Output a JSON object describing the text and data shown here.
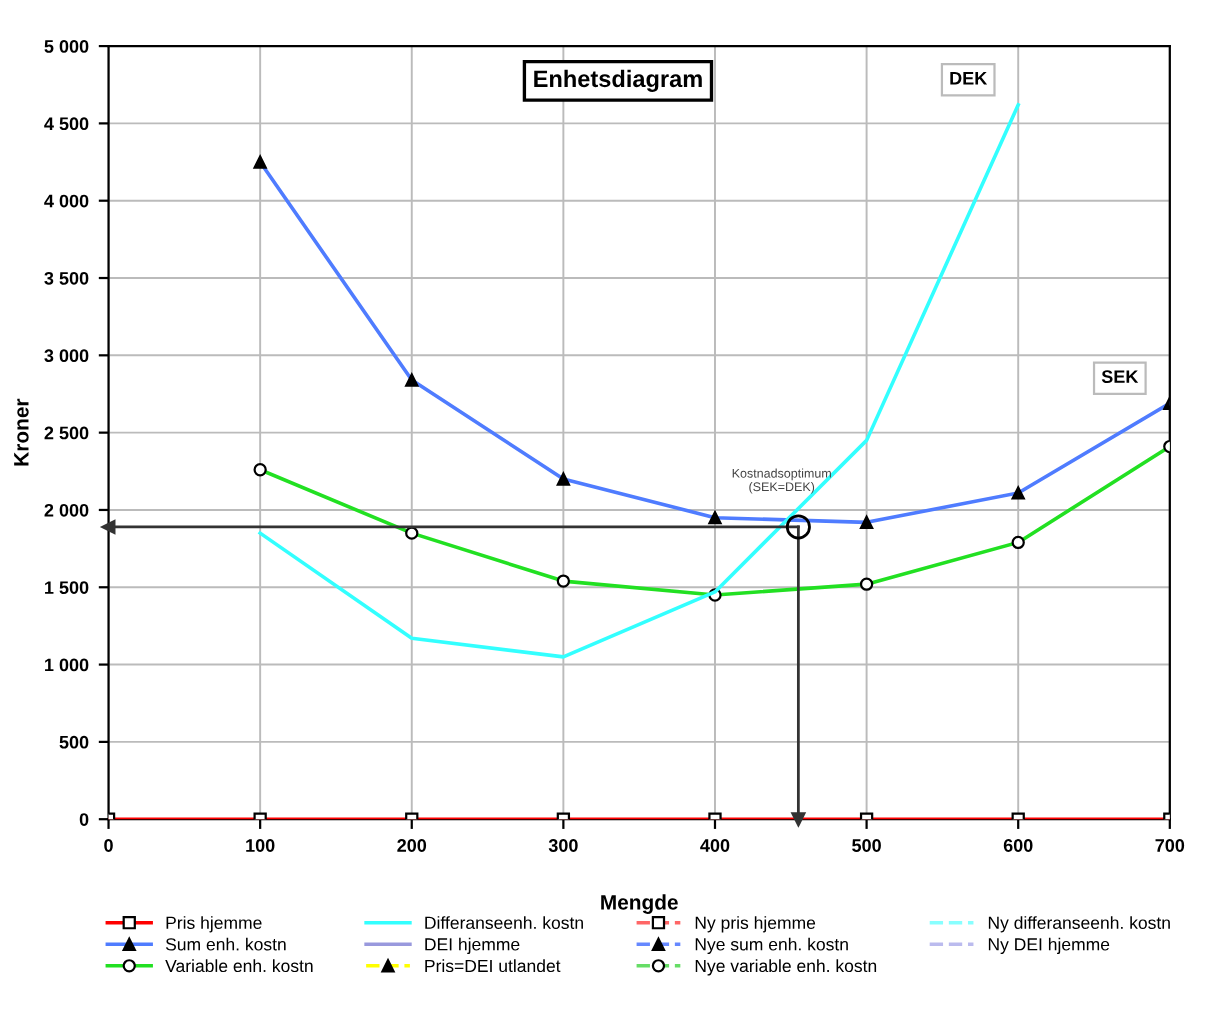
{
  "chart_data": {
    "type": "line",
    "title": "Enhetsdiagram",
    "xlabel": "Mengde",
    "ylabel": "Kroner",
    "x": [
      0,
      100,
      200,
      300,
      400,
      500,
      600,
      700
    ],
    "series": [
      {
        "name": "Pris hjemme",
        "color": "#ff0000",
        "marker": "square",
        "line_style": "solid",
        "values": [
          0,
          0,
          0,
          0,
          0,
          0,
          0,
          0
        ]
      },
      {
        "name": "Sum enh. kostn",
        "color": "#4f7cff",
        "marker": "triangle",
        "line_style": "solid",
        "values": [
          null,
          4250,
          2840,
          2200,
          1950,
          1920,
          2110,
          2690
        ]
      },
      {
        "name": "Variable enh. kostn",
        "color": "#22e022",
        "marker": "circle",
        "line_style": "solid",
        "values": [
          null,
          2260,
          1850,
          1540,
          1450,
          1520,
          1790,
          2410
        ]
      },
      {
        "name": "Differanseenh. kostn",
        "color": "#33ffff",
        "marker": "none",
        "line_style": "solid",
        "values": [
          null,
          1850,
          1170,
          1050,
          1470,
          2450,
          4620,
          null
        ]
      },
      {
        "name": "DEI hjemme",
        "color": "#9999dd",
        "marker": "none",
        "line_style": "solid",
        "values": [
          null,
          null,
          null,
          null,
          null,
          null,
          null,
          null
        ]
      },
      {
        "name": "Pris=DEI utlandet",
        "color": "#ffff00",
        "marker": "triangle",
        "line_style": "dashed",
        "values": [
          null,
          null,
          null,
          null,
          null,
          null,
          null,
          null
        ]
      },
      {
        "name": "Ny pris hjemme",
        "color": "#ff6666",
        "marker": "square",
        "line_style": "dashed",
        "values": [
          null,
          null,
          null,
          null,
          null,
          null,
          null,
          null
        ]
      },
      {
        "name": "Nye sum enh. kostn",
        "color": "#6688ff",
        "marker": "triangle",
        "line_style": "dashed",
        "values": [
          null,
          null,
          null,
          null,
          null,
          null,
          null,
          null
        ]
      },
      {
        "name": "Nye variable enh. kostn",
        "color": "#66dd66",
        "marker": "circle",
        "line_style": "dashed",
        "values": [
          null,
          null,
          null,
          null,
          null,
          null,
          null,
          null
        ]
      },
      {
        "name": "Ny differanseenh. kostn",
        "color": "#88ffff",
        "marker": "none",
        "line_style": "dashed",
        "values": [
          null,
          null,
          null,
          null,
          null,
          null,
          null,
          null
        ]
      },
      {
        "name": "Ny DEI hjemme",
        "color": "#bbbbee",
        "marker": "none",
        "line_style": "dashed",
        "values": [
          null,
          null,
          null,
          null,
          null,
          null,
          null,
          null
        ]
      }
    ],
    "xlim": [
      0,
      700
    ],
    "xticks": [
      0,
      100,
      200,
      300,
      400,
      500,
      600,
      700
    ],
    "ylim": [
      0,
      5000
    ],
    "yticks": [
      0,
      500,
      {
        "value": 1000,
        "label": "1 000"
      },
      {
        "value": 1500,
        "label": "1 500"
      },
      {
        "value": 2000,
        "label": "2 000"
      },
      {
        "value": 2500,
        "label": "2 500"
      },
      {
        "value": 3000,
        "label": "3 000"
      },
      {
        "value": 3500,
        "label": "3 500"
      },
      {
        "value": 4000,
        "label": "4 000"
      },
      {
        "value": 4500,
        "label": "4 500"
      },
      {
        "value": 5000,
        "label": "5 000"
      }
    ],
    "ref_lines": [
      {
        "axis": "y",
        "value": 1890,
        "color": "#333333",
        "line_style": "solid"
      },
      {
        "axis": "x",
        "value": 455,
        "color": "#333333",
        "line_style": "solid"
      }
    ],
    "annotations": [
      {
        "text": "Kostnadsoptimum\n(SEK=DEK)",
        "x": 455,
        "y": 1890
      },
      {
        "text": "DEK",
        "x": 600,
        "y": 4620
      },
      {
        "text": "SEK",
        "x": 700,
        "y": 2690
      }
    ],
    "grid": true,
    "legend": "bottom"
  }
}
